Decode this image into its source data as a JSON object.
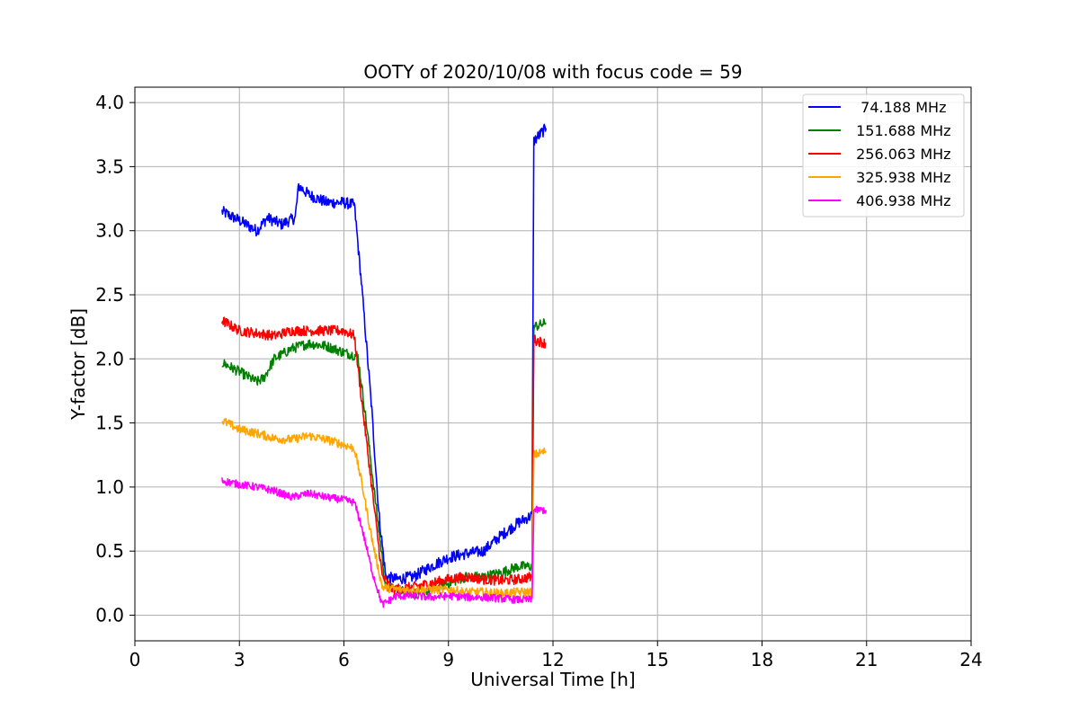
{
  "chart_data": {
    "type": "line",
    "title": "OOTY of 2020/10/08 with focus code = 59",
    "xlabel": "Universal Time [h]",
    "ylabel": "Y-factor [dB]",
    "xlim": [
      0,
      24
    ],
    "ylim": [
      -0.2,
      4.12
    ],
    "xticks": [
      0,
      3,
      6,
      9,
      12,
      15,
      18,
      21,
      24
    ],
    "xtick_labels": [
      "0",
      "3",
      "6",
      "9",
      "12",
      "15",
      "18",
      "21",
      "24"
    ],
    "yticks": [
      0.0,
      0.5,
      1.0,
      1.5,
      2.0,
      2.5,
      3.0,
      3.5,
      4.0
    ],
    "ytick_labels": [
      "0.0",
      "0.5",
      "1.0",
      "1.5",
      "2.0",
      "2.5",
      "3.0",
      "3.5",
      "4.0"
    ],
    "grid": true,
    "legend_position": "top-right",
    "series": [
      {
        "name": "  74.188 MHz",
        "color": "#0000ff",
        "noise": 0.045,
        "points": [
          [
            2.5,
            3.15
          ],
          [
            3.0,
            3.08
          ],
          [
            3.5,
            3.0
          ],
          [
            3.8,
            3.1
          ],
          [
            4.2,
            3.05
          ],
          [
            4.6,
            3.1
          ],
          [
            4.7,
            3.35
          ],
          [
            5.0,
            3.28
          ],
          [
            5.5,
            3.22
          ],
          [
            6.0,
            3.22
          ],
          [
            6.3,
            3.2
          ],
          [
            6.5,
            2.6
          ],
          [
            6.8,
            1.6
          ],
          [
            7.0,
            0.8
          ],
          [
            7.2,
            0.3
          ],
          [
            7.5,
            0.28
          ],
          [
            8.0,
            0.3
          ],
          [
            8.5,
            0.38
          ],
          [
            9.0,
            0.45
          ],
          [
            9.5,
            0.48
          ],
          [
            10.0,
            0.5
          ],
          [
            10.5,
            0.62
          ],
          [
            11.0,
            0.72
          ],
          [
            11.4,
            0.78
          ],
          [
            11.45,
            3.7
          ],
          [
            11.8,
            3.8
          ]
        ]
      },
      {
        "name": " 151.688 MHz",
        "color": "#008000",
        "noise": 0.04,
        "points": [
          [
            2.5,
            1.97
          ],
          [
            3.0,
            1.9
          ],
          [
            3.5,
            1.82
          ],
          [
            3.7,
            1.85
          ],
          [
            4.0,
            2.0
          ],
          [
            4.5,
            2.08
          ],
          [
            5.0,
            2.12
          ],
          [
            5.5,
            2.1
          ],
          [
            6.0,
            2.05
          ],
          [
            6.4,
            2.02
          ],
          [
            6.6,
            1.6
          ],
          [
            6.9,
            0.9
          ],
          [
            7.2,
            0.22
          ],
          [
            7.5,
            0.2
          ],
          [
            8.0,
            0.17
          ],
          [
            8.5,
            0.2
          ],
          [
            9.0,
            0.25
          ],
          [
            9.5,
            0.3
          ],
          [
            10.0,
            0.3
          ],
          [
            10.5,
            0.33
          ],
          [
            11.0,
            0.38
          ],
          [
            11.4,
            0.38
          ],
          [
            11.45,
            2.25
          ],
          [
            11.8,
            2.28
          ]
        ]
      },
      {
        "name": " 256.063 MHz",
        "color": "#ff0000",
        "noise": 0.04,
        "points": [
          [
            2.5,
            2.3
          ],
          [
            3.0,
            2.22
          ],
          [
            3.5,
            2.2
          ],
          [
            4.0,
            2.18
          ],
          [
            4.5,
            2.22
          ],
          [
            5.0,
            2.22
          ],
          [
            5.5,
            2.22
          ],
          [
            6.0,
            2.22
          ],
          [
            6.3,
            2.18
          ],
          [
            6.5,
            1.7
          ],
          [
            6.8,
            1.0
          ],
          [
            7.1,
            0.3
          ],
          [
            7.4,
            0.2
          ],
          [
            8.0,
            0.22
          ],
          [
            8.5,
            0.25
          ],
          [
            9.0,
            0.28
          ],
          [
            9.5,
            0.3
          ],
          [
            10.0,
            0.28
          ],
          [
            10.5,
            0.27
          ],
          [
            11.0,
            0.28
          ],
          [
            11.4,
            0.3
          ],
          [
            11.45,
            2.15
          ],
          [
            11.8,
            2.12
          ]
        ]
      },
      {
        "name": " 325.938 MHz",
        "color": "#ffa500",
        "noise": 0.035,
        "points": [
          [
            2.5,
            1.52
          ],
          [
            3.0,
            1.45
          ],
          [
            3.5,
            1.42
          ],
          [
            4.0,
            1.38
          ],
          [
            4.5,
            1.37
          ],
          [
            5.0,
            1.4
          ],
          [
            5.5,
            1.37
          ],
          [
            6.0,
            1.33
          ],
          [
            6.3,
            1.3
          ],
          [
            6.5,
            1.05
          ],
          [
            6.8,
            0.6
          ],
          [
            7.1,
            0.22
          ],
          [
            7.5,
            0.2
          ],
          [
            8.0,
            0.2
          ],
          [
            8.5,
            0.2
          ],
          [
            9.0,
            0.2
          ],
          [
            9.5,
            0.18
          ],
          [
            10.0,
            0.18
          ],
          [
            10.5,
            0.17
          ],
          [
            11.0,
            0.18
          ],
          [
            11.4,
            0.18
          ],
          [
            11.45,
            1.25
          ],
          [
            11.8,
            1.28
          ]
        ]
      },
      {
        "name": " 406.938 MHz",
        "color": "#ff00ff",
        "noise": 0.03,
        "points": [
          [
            2.5,
            1.05
          ],
          [
            3.0,
            1.02
          ],
          [
            3.5,
            1.0
          ],
          [
            4.0,
            0.97
          ],
          [
            4.5,
            0.92
          ],
          [
            5.0,
            0.95
          ],
          [
            5.5,
            0.92
          ],
          [
            6.0,
            0.9
          ],
          [
            6.3,
            0.88
          ],
          [
            6.5,
            0.7
          ],
          [
            6.8,
            0.35
          ],
          [
            7.1,
            0.08
          ],
          [
            7.5,
            0.15
          ],
          [
            8.0,
            0.15
          ],
          [
            8.5,
            0.14
          ],
          [
            9.0,
            0.15
          ],
          [
            9.5,
            0.14
          ],
          [
            10.0,
            0.14
          ],
          [
            10.5,
            0.13
          ],
          [
            11.0,
            0.12
          ],
          [
            11.4,
            0.12
          ],
          [
            11.45,
            0.82
          ],
          [
            11.8,
            0.82
          ]
        ]
      }
    ]
  }
}
